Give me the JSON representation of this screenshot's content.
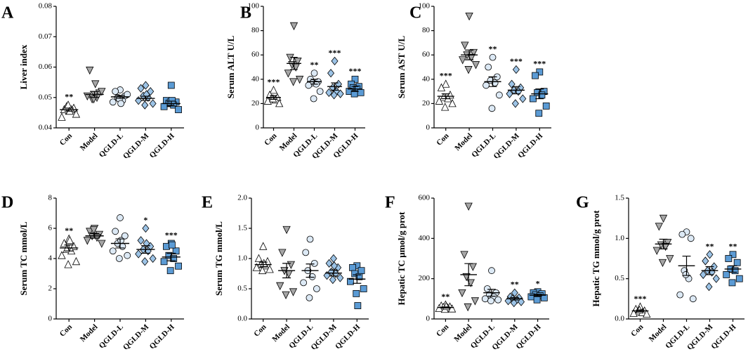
{
  "chart_data": [
    {
      "type": "dot",
      "panel": "A",
      "ylabel": "Liver index",
      "categories": [
        "Con",
        "Model",
        "QGLD-L",
        "QGLD-M",
        "QGLD-H"
      ],
      "markers": [
        "triangle-up",
        "triangle-down",
        "circle",
        "diamond",
        "square"
      ],
      "colors": [
        "#ffffff",
        "#a6a6a6",
        "#dce9f5",
        "#9cc3e6",
        "#5b9bd5"
      ],
      "points": [
        [
          0.0455,
          0.046,
          0.0465,
          0.047,
          0.046,
          0.0435,
          0.0445,
          0.0475,
          0.0455
        ],
        [
          0.051,
          0.059,
          0.0515,
          0.0495,
          0.05,
          0.0505,
          0.052,
          0.0495,
          0.0545
        ],
        [
          0.0525,
          0.052,
          0.0505,
          0.05,
          0.049,
          0.0485,
          0.051,
          0.0495,
          0.048
        ],
        [
          0.054,
          0.053,
          0.052,
          0.0505,
          0.05,
          0.049,
          0.048,
          0.0475,
          0.051
        ],
        [
          0.054,
          0.049,
          0.0485,
          0.048,
          0.0475,
          0.047,
          0.046,
          0.0485,
          0.049
        ]
      ],
      "means": [
        0.046,
        0.051,
        0.0502,
        0.0497,
        0.048
      ],
      "errors": [
        0.0005,
        0.001,
        0.0005,
        0.0007,
        0.0008
      ],
      "annotations": [
        "**",
        null,
        null,
        null,
        null
      ],
      "ylim": [
        0.04,
        0.08
      ],
      "yticks": [
        0.04,
        0.05,
        0.06,
        0.07,
        0.08
      ]
    },
    {
      "type": "dot",
      "panel": "B",
      "ylabel": "Serum ALT U/L",
      "categories": [
        "Con",
        "Model",
        "QGLD-L",
        "QGLD-M",
        "QGLD-H"
      ],
      "markers": [
        "triangle-up",
        "triangle-down",
        "circle",
        "diamond",
        "square"
      ],
      "colors": [
        "#ffffff",
        "#a6a6a6",
        "#dce9f5",
        "#9cc3e6",
        "#5b9bd5"
      ],
      "points": [
        [
          31,
          27,
          25,
          24,
          23,
          22,
          20,
          24
        ],
        [
          84,
          58,
          55,
          52,
          50,
          45,
          40,
          38
        ],
        [
          45,
          40,
          38,
          37,
          36,
          35,
          30,
          24
        ],
        [
          55,
          45,
          36,
          33,
          30,
          29,
          28,
          27
        ],
        [
          40,
          36,
          34,
          33,
          32,
          30,
          29,
          28
        ]
      ],
      "means": [
        25,
        53,
        38,
        34,
        32
      ],
      "errors": [
        1.5,
        5,
        2,
        3,
        2
      ],
      "annotations": [
        "***",
        null,
        "**",
        "***",
        "***"
      ],
      "ylim": [
        0,
        100
      ],
      "yticks": [
        0,
        20,
        40,
        60,
        80,
        100
      ]
    },
    {
      "type": "dot",
      "panel": "C",
      "ylabel": "Serum AST U/L",
      "categories": [
        "Con",
        "Model",
        "QGLD-L",
        "QGLD-M",
        "QGLD-H"
      ],
      "markers": [
        "triangle-up",
        "triangle-down",
        "circle",
        "diamond",
        "square"
      ],
      "colors": [
        "#ffffff",
        "#a6a6a6",
        "#dce9f5",
        "#9cc3e6",
        "#5b9bd5"
      ],
      "points": [
        [
          36,
          33,
          27,
          25,
          24,
          22,
          20,
          17
        ],
        [
          92,
          68,
          62,
          60,
          58,
          56,
          52,
          48
        ],
        [
          58,
          50,
          42,
          39,
          37,
          35,
          27,
          16
        ],
        [
          48,
          36,
          33,
          31,
          30,
          28,
          24,
          20
        ],
        [
          46,
          43,
          30,
          29,
          27,
          24,
          18,
          12
        ]
      ],
      "means": [
        26,
        60,
        38,
        31,
        28
      ],
      "errors": [
        2,
        4,
        4,
        3,
        4
      ],
      "annotations": [
        "***",
        null,
        "**",
        "***",
        "***"
      ],
      "ylim": [
        0,
        100
      ],
      "yticks": [
        0,
        20,
        40,
        60,
        80,
        100
      ]
    },
    {
      "type": "dot",
      "panel": "D",
      "ylabel": "Serum TC mmol/L",
      "categories": [
        "Con",
        "Model",
        "QGLD-L",
        "QGLD-M",
        "QGLD-H"
      ],
      "markers": [
        "triangle-up",
        "triangle-down",
        "circle",
        "diamond",
        "square"
      ],
      "colors": [
        "#ffffff",
        "#a6a6a6",
        "#dce9f5",
        "#9cc3e6",
        "#5b9bd5"
      ],
      "points": [
        [
          5.3,
          5.0,
          4.8,
          4.6,
          4.5,
          4.2,
          3.8,
          3.6,
          5.2
        ],
        [
          6.0,
          5.8,
          5.6,
          5.5,
          5.4,
          5.2,
          5.0,
          5.9
        ],
        [
          6.7,
          5.8,
          5.5,
          5.0,
          4.8,
          4.5,
          4.2,
          4.0,
          5.2
        ],
        [
          6.0,
          5.2,
          4.8,
          4.6,
          4.5,
          4.3,
          4.0,
          3.8,
          5.0
        ],
        [
          5.0,
          4.8,
          4.5,
          4.2,
          4.0,
          3.8,
          3.5,
          3.2,
          4.9
        ]
      ],
      "means": [
        4.7,
        5.5,
        5.0,
        4.6,
        4.1
      ],
      "errors": [
        0.2,
        0.15,
        0.3,
        0.25,
        0.25
      ],
      "annotations": [
        "**",
        null,
        null,
        "*",
        "***"
      ],
      "ylim": [
        0,
        8
      ],
      "yticks": [
        0,
        2,
        4,
        6,
        8
      ]
    },
    {
      "type": "dot",
      "panel": "E",
      "ylabel": "Serum TG mmol/L",
      "categories": [
        "Con",
        "Model",
        "QGLD-L",
        "QGLD-M",
        "QGLD-H"
      ],
      "markers": [
        "triangle-up",
        "triangle-down",
        "circle",
        "diamond",
        "square"
      ],
      "colors": [
        "#ffffff",
        "#a6a6a6",
        "#dce9f5",
        "#9cc3e6",
        "#5b9bd5"
      ],
      "points": [
        [
          1.2,
          1.0,
          0.95,
          0.9,
          0.88,
          0.85,
          0.82,
          0.8,
          0.92
        ],
        [
          1.48,
          1.1,
          0.9,
          0.8,
          0.75,
          0.55,
          0.45,
          0.4
        ],
        [
          1.32,
          1.1,
          0.92,
          0.8,
          0.7,
          0.6,
          0.5,
          0.35
        ],
        [
          1.0,
          0.92,
          0.85,
          0.78,
          0.75,
          0.72,
          0.68,
          0.65,
          0.88
        ],
        [
          0.88,
          0.85,
          0.8,
          0.75,
          0.7,
          0.62,
          0.5,
          0.42,
          0.22
        ]
      ],
      "means": [
        0.9,
        0.8,
        0.8,
        0.76,
        0.66
      ],
      "errors": [
        0.04,
        0.12,
        0.11,
        0.05,
        0.07
      ],
      "annotations": [
        null,
        null,
        null,
        null,
        null
      ],
      "ylim": [
        0,
        2
      ],
      "yticks": [
        {
          "value": 0,
          "label": "0.0"
        },
        0.5,
        {
          "value": 1,
          "label": "1.0"
        },
        1.5,
        {
          "value": 2,
          "label": "2.0"
        }
      ]
    },
    {
      "type": "dot",
      "panel": "F",
      "ylabel": "Hepatic TC μmol/g prot",
      "categories": [
        "Con",
        "Model",
        "QGLD-L",
        "QGLD-M",
        "QGLD-H"
      ],
      "markers": [
        "triangle-up",
        "triangle-down",
        "circle",
        "diamond",
        "square"
      ],
      "colors": [
        "#ffffff",
        "#a6a6a6",
        "#dce9f5",
        "#9cc3e6",
        "#5b9bd5"
      ],
      "points": [
        [
          70,
          65,
          60,
          58,
          55,
          52,
          50,
          48,
          62
        ],
        [
          560,
          320,
          260,
          210,
          180,
          130,
          90,
          60
        ],
        [
          240,
          150,
          130,
          120,
          110,
          100,
          95,
          90
        ],
        [
          130,
          110,
          105,
          100,
          95,
          90,
          85,
          80
        ],
        [
          135,
          130,
          125,
          120,
          115,
          110,
          105,
          95
        ]
      ],
      "means": [
        57,
        220,
        130,
        100,
        118
      ],
      "errors": [
        3,
        55,
        17,
        6,
        5
      ],
      "annotations": [
        "**",
        null,
        null,
        "**",
        "*"
      ],
      "ylim": [
        0,
        600
      ],
      "yticks": [
        0,
        200,
        400,
        600
      ]
    },
    {
      "type": "dot",
      "panel": "G",
      "ylabel": "Hepatic TG mmol/g prot",
      "categories": [
        "Con",
        "Model",
        "QGLD-L",
        "QGLD-M",
        "QGLD-H"
      ],
      "markers": [
        "triangle-up",
        "triangle-down",
        "circle",
        "diamond",
        "square"
      ],
      "colors": [
        "#ffffff",
        "#a6a6a6",
        "#dce9f5",
        "#9cc3e6",
        "#5b9bd5"
      ],
      "points": [
        [
          0.15,
          0.12,
          0.1,
          0.09,
          0.08,
          0.07,
          0.06,
          0.11
        ],
        [
          1.25,
          1.15,
          0.95,
          0.92,
          0.9,
          0.85,
          0.75,
          0.7
        ],
        [
          1.08,
          1.05,
          1.0,
          0.6,
          0.5,
          0.3,
          0.25,
          0.55
        ],
        [
          0.8,
          0.72,
          0.65,
          0.6,
          0.58,
          0.55,
          0.5,
          0.4
        ],
        [
          0.8,
          0.75,
          0.7,
          0.62,
          0.6,
          0.55,
          0.5,
          0.45
        ]
      ],
      "means": [
        0.1,
        0.93,
        0.66,
        0.6,
        0.62
      ],
      "errors": [
        0.012,
        0.06,
        0.12,
        0.05,
        0.04
      ],
      "annotations": [
        "***",
        null,
        null,
        "**",
        "**"
      ],
      "ylim": [
        0,
        1.5
      ],
      "yticks": [
        {
          "value": 0,
          "label": "0.0"
        },
        0.5,
        {
          "value": 1,
          "label": "1.0"
        },
        1.5
      ]
    }
  ]
}
